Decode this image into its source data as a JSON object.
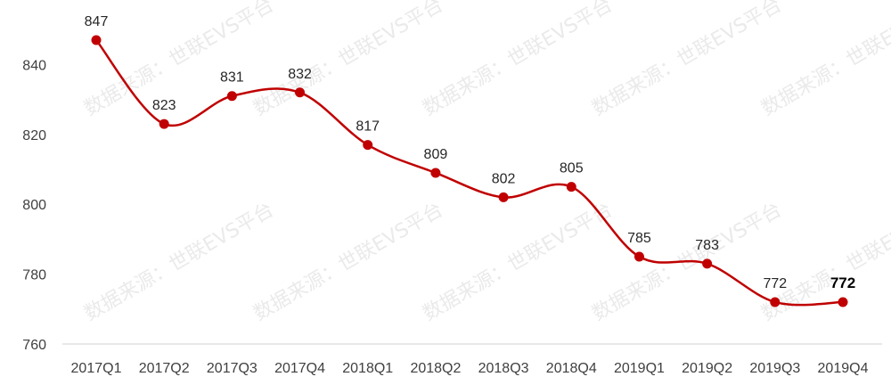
{
  "chart_data": {
    "type": "line",
    "title": "",
    "xlabel": "",
    "ylabel": "",
    "categories": [
      "2017Q1",
      "2017Q2",
      "2017Q3",
      "2017Q4",
      "2018Q1",
      "2018Q2",
      "2018Q3",
      "2018Q4",
      "2019Q1",
      "2019Q2",
      "2019Q3",
      "2019Q4"
    ],
    "series": [
      {
        "values": [
          847,
          823,
          831,
          832,
          817,
          809,
          802,
          805,
          785,
          783,
          772,
          772
        ]
      }
    ],
    "data_labels": [
      "847",
      "823",
      "831",
      "832",
      "817",
      "809",
      "802",
      "805",
      "785",
      "783",
      "772",
      "772"
    ],
    "highlighted_label_index": 11,
    "ylim": [
      760,
      850
    ],
    "yticks": [
      760,
      780,
      800,
      820,
      840
    ],
    "grid": false,
    "legend": "none",
    "line_color": "#c00000",
    "marker_color": "#c00000",
    "smooth": true
  },
  "watermark": {
    "text": "数据来源：世联EVS平台"
  }
}
